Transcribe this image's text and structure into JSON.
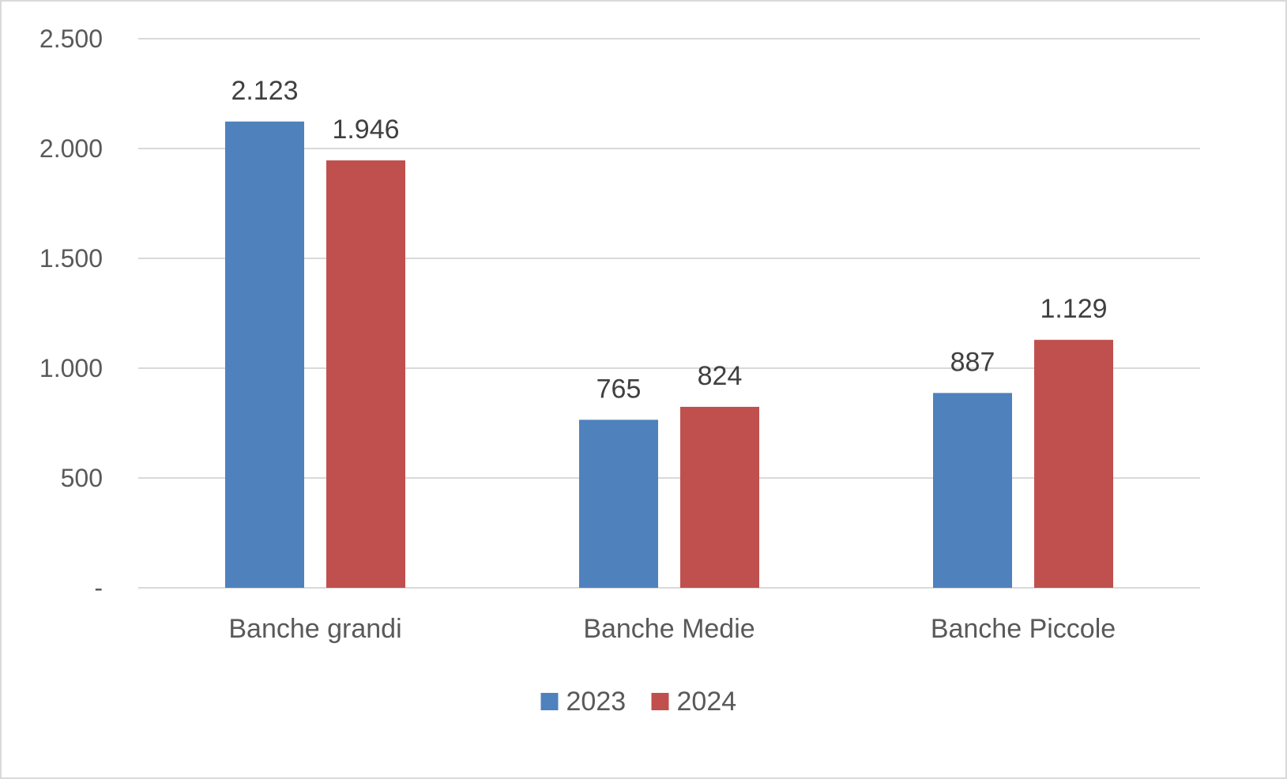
{
  "chart_data": {
    "type": "bar",
    "categories": [
      "Banche grandi",
      "Banche Medie",
      "Banche Piccole"
    ],
    "series": [
      {
        "name": "2023",
        "color": "#4f81bd",
        "values": [
          2123,
          765,
          887
        ],
        "labels": [
          "2.123",
          "765",
          "887"
        ]
      },
      {
        "name": "2024",
        "color": "#c0504d",
        "values": [
          1946,
          824,
          1129
        ],
        "labels": [
          "1.946",
          "824",
          "1.129"
        ]
      }
    ],
    "yticks": [
      {
        "value": 0,
        "label": "-"
      },
      {
        "value": 500,
        "label": "500"
      },
      {
        "value": 1000,
        "label": "1.000"
      },
      {
        "value": 1500,
        "label": "1.500"
      },
      {
        "value": 2000,
        "label": "2.000"
      },
      {
        "value": 2500,
        "label": "2.500"
      }
    ],
    "ylim": [
      0,
      2500
    ],
    "grid": true,
    "legend_position": "bottom",
    "gridline_color": "#d9d9d9"
  }
}
